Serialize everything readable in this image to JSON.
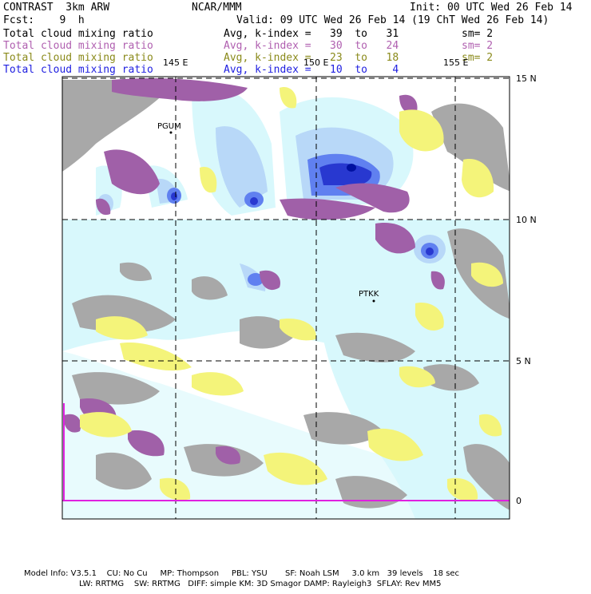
{
  "header": {
    "model": "CONTRAST  3km ARW",
    "org": "NCAR/MMM",
    "init": "Init: 00 UTC Wed 26 Feb 14",
    "fcst": "Fcst:    9  h",
    "valid": "Valid: 09 UTC Wed 26 Feb 14 (19 ChT Wed 26 Feb 14)"
  },
  "legend": [
    {
      "label": "Total cloud mixing ratio",
      "range": "Avg, k-index =   39  to   31",
      "sm": "sm= 2",
      "color": "#000000"
    },
    {
      "label": "Total cloud mixing ratio",
      "range": "Avg, k-index =   30  to   24",
      "sm": "sm= 2",
      "color": "#b060b0"
    },
    {
      "label": "Total cloud mixing ratio",
      "range": "Avg, k-index =   23  to   18",
      "sm": "sm= 2",
      "color": "#8a8a1a"
    },
    {
      "label": "Total cloud mixing ratio",
      "range": "Avg, k-index =   10  to    4",
      "sm": "",
      "color": "#2020e0"
    }
  ],
  "axes": {
    "lon_labels": [
      "145 E",
      "150 E",
      "155 E"
    ],
    "lat_labels": [
      "15 N",
      "10 N",
      "5 N",
      "0"
    ]
  },
  "stations": [
    "PGUM",
    "PTKK"
  ],
  "colors": {
    "grey": "#a8a8a8",
    "purple": "#a060a8",
    "yellow": "#f4f47a",
    "cyan": "#d8f8fc",
    "lightblue": "#b8d8f8",
    "blue": "#3050e8",
    "magenta": "#e020e0"
  },
  "footer": {
    "line1": "Model Info: V3.5.1    CU: No Cu     MP: Thompson     PBL: YSU       SF: Noah LSM     3.0 km   39 levels    18 sec",
    "line2": "LW: RRTMG    SW: RRTMG   DIFF: simple KM: 3D Smagor DAMP: Rayleigh3  SFLAY: Rev MM5"
  }
}
